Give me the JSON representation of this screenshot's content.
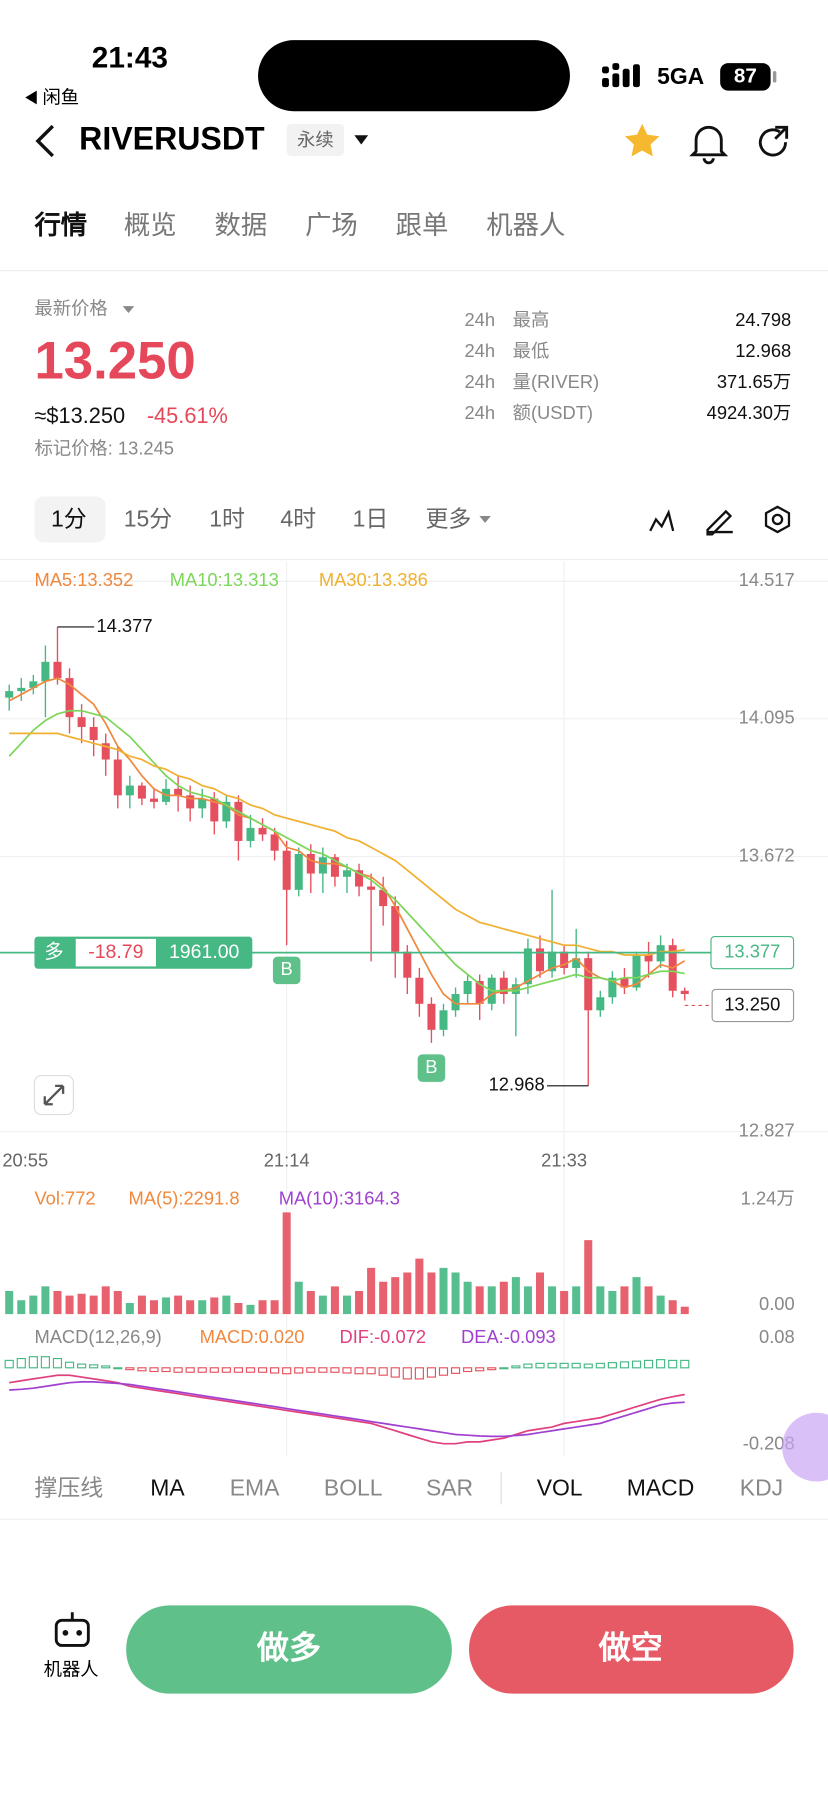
{
  "status_bar": {
    "time": "21:43",
    "back_app": "闲鱼",
    "network": "5GA",
    "battery": "87"
  },
  "header": {
    "symbol": "RIVERUSDT",
    "badge": "永续"
  },
  "tabs": [
    "行情",
    "概览",
    "数据",
    "广场",
    "跟单",
    "机器人"
  ],
  "price_panel": {
    "label": "最新价格",
    "price": "13.250",
    "usd": "≈$13.250",
    "change": "-45.61%",
    "mark_price": "标记价格: 13.245",
    "stats": [
      [
        "24h",
        "最高",
        "24.798"
      ],
      [
        "24h",
        "最低",
        "12.968"
      ],
      [
        "24h",
        "量(RIVER)",
        "371.65万"
      ],
      [
        "24h",
        "额(USDT)",
        "4924.30万"
      ]
    ]
  },
  "intervals": [
    "1分",
    "15分",
    "1时",
    "4时",
    "1日",
    "更多"
  ],
  "chart_data": {
    "type": "candlestick",
    "categories": [
      "20:55",
      null,
      null,
      null,
      null,
      null,
      null,
      null,
      null,
      null,
      null,
      null,
      null,
      null,
      null,
      null,
      null,
      null,
      null,
      null,
      null,
      null,
      null,
      "21:14",
      null,
      null,
      null,
      null,
      null,
      null,
      null,
      null,
      null,
      null,
      null,
      null,
      null,
      null,
      null,
      null,
      null,
      null,
      null,
      null,
      null,
      null,
      "21:33",
      null,
      null,
      null,
      null,
      null,
      null,
      null,
      null,
      null,
      null
    ],
    "ohlc": [
      [
        14.16,
        14.2,
        14.12,
        14.18
      ],
      [
        14.18,
        14.22,
        14.15,
        14.19
      ],
      [
        14.19,
        14.23,
        14.17,
        14.21
      ],
      [
        14.21,
        14.32,
        14.1,
        14.27
      ],
      [
        14.27,
        14.377,
        14.2,
        14.22
      ],
      [
        14.22,
        14.25,
        14.05,
        14.1
      ],
      [
        14.1,
        14.14,
        14.02,
        14.07
      ],
      [
        14.07,
        14.1,
        13.98,
        14.03
      ],
      [
        14.02,
        14.05,
        13.92,
        13.97
      ],
      [
        13.97,
        14.01,
        13.82,
        13.86
      ],
      [
        13.86,
        13.92,
        13.82,
        13.89
      ],
      [
        13.89,
        13.9,
        13.83,
        13.85
      ],
      [
        13.85,
        13.88,
        13.82,
        13.84
      ],
      [
        13.84,
        13.91,
        13.83,
        13.88
      ],
      [
        13.88,
        13.92,
        13.81,
        13.86
      ],
      [
        13.86,
        13.89,
        13.78,
        13.82
      ],
      [
        13.82,
        13.88,
        13.79,
        13.85
      ],
      [
        13.85,
        13.87,
        13.74,
        13.78
      ],
      [
        13.78,
        13.86,
        13.76,
        13.84
      ],
      [
        13.84,
        13.86,
        13.66,
        13.72
      ],
      [
        13.72,
        13.8,
        13.7,
        13.76
      ],
      [
        13.76,
        13.79,
        13.72,
        13.74
      ],
      [
        13.74,
        13.76,
        13.66,
        13.69
      ],
      [
        13.69,
        13.72,
        13.4,
        13.57
      ],
      [
        13.57,
        13.7,
        13.55,
        13.68
      ],
      [
        13.68,
        13.71,
        13.56,
        13.62
      ],
      [
        13.62,
        13.7,
        13.56,
        13.67
      ],
      [
        13.67,
        13.68,
        13.58,
        13.61
      ],
      [
        13.61,
        13.65,
        13.56,
        13.63
      ],
      [
        13.63,
        13.65,
        13.55,
        13.58
      ],
      [
        13.58,
        13.62,
        13.35,
        13.57
      ],
      [
        13.57,
        13.61,
        13.46,
        13.52
      ],
      [
        13.52,
        13.55,
        13.3,
        13.38
      ],
      [
        13.38,
        13.4,
        13.25,
        13.3
      ],
      [
        13.3,
        13.33,
        13.18,
        13.22
      ],
      [
        13.22,
        13.24,
        13.1,
        13.14
      ],
      [
        13.14,
        13.22,
        13.12,
        13.2
      ],
      [
        13.2,
        13.27,
        13.18,
        13.25
      ],
      [
        13.25,
        13.31,
        13.22,
        13.29
      ],
      [
        13.29,
        13.31,
        13.17,
        13.22
      ],
      [
        13.22,
        13.31,
        13.2,
        13.3
      ],
      [
        13.3,
        13.32,
        13.22,
        13.25
      ],
      [
        13.25,
        13.3,
        13.12,
        13.28
      ],
      [
        13.28,
        13.42,
        13.25,
        13.39
      ],
      [
        13.39,
        13.43,
        13.3,
        13.32
      ],
      [
        13.32,
        13.57,
        13.3,
        13.38
      ],
      [
        13.38,
        13.4,
        13.31,
        13.33
      ],
      [
        13.33,
        13.45,
        13.3,
        13.36
      ],
      [
        13.36,
        13.38,
        12.968,
        13.2
      ],
      [
        13.2,
        13.26,
        13.18,
        13.24
      ],
      [
        13.24,
        13.32,
        13.22,
        13.3
      ],
      [
        13.3,
        13.33,
        13.25,
        13.27
      ],
      [
        13.27,
        13.38,
        13.26,
        13.37
      ],
      [
        13.37,
        13.41,
        13.3,
        13.35
      ],
      [
        13.35,
        13.43,
        13.33,
        13.4
      ],
      [
        13.4,
        13.42,
        13.24,
        13.26
      ],
      [
        13.26,
        13.27,
        13.23,
        13.25
      ]
    ],
    "up_color": "#45b883",
    "down_color": "#e6505e",
    "series": [
      {
        "name": "MA5:13.352",
        "color": "#f0883e",
        "values": [
          14.15,
          14.17,
          14.19,
          14.21,
          14.22,
          14.2,
          14.17,
          14.14,
          14.08,
          14.01,
          13.97,
          13.92,
          13.88,
          13.86,
          13.86,
          13.85,
          13.85,
          13.84,
          13.83,
          13.8,
          13.79,
          13.77,
          13.75,
          13.7,
          13.69,
          13.66,
          13.65,
          13.65,
          13.64,
          13.62,
          13.61,
          13.58,
          13.52,
          13.45,
          13.38,
          13.31,
          13.25,
          13.22,
          13.22,
          13.22,
          13.25,
          13.26,
          13.27,
          13.29,
          13.31,
          13.33,
          13.34,
          13.36,
          13.32,
          13.3,
          13.29,
          13.27,
          13.28,
          13.31,
          13.34,
          13.33,
          13.352
        ]
      },
      {
        "name": "MA10:13.313",
        "color": "#7bd65a",
        "values": [
          13.98,
          14.02,
          14.06,
          14.09,
          14.11,
          14.12,
          14.12,
          14.11,
          14.1,
          14.07,
          14.04,
          14.0,
          13.96,
          13.92,
          13.89,
          13.87,
          13.86,
          13.85,
          13.83,
          13.81,
          13.79,
          13.77,
          13.75,
          13.73,
          13.71,
          13.69,
          13.68,
          13.66,
          13.64,
          13.62,
          13.6,
          13.57,
          13.54,
          13.5,
          13.46,
          13.42,
          13.38,
          13.34,
          13.31,
          13.28,
          13.26,
          13.26,
          13.26,
          13.27,
          13.28,
          13.29,
          13.3,
          13.31,
          13.3,
          13.3,
          13.29,
          13.3,
          13.3,
          13.31,
          13.32,
          13.32,
          13.313
        ]
      },
      {
        "name": "MA30:13.386",
        "color": "#f0b030",
        "values": [
          14.05,
          14.05,
          14.05,
          14.05,
          14.05,
          14.04,
          14.03,
          14.02,
          14.01,
          14.0,
          13.98,
          13.97,
          13.95,
          13.94,
          13.92,
          13.91,
          13.89,
          13.88,
          13.86,
          13.85,
          13.83,
          13.82,
          13.8,
          13.79,
          13.78,
          13.77,
          13.76,
          13.75,
          13.73,
          13.72,
          13.7,
          13.68,
          13.66,
          13.63,
          13.6,
          13.57,
          13.54,
          13.51,
          13.49,
          13.47,
          13.46,
          13.45,
          13.44,
          13.43,
          13.42,
          13.41,
          13.4,
          13.4,
          13.39,
          13.38,
          13.38,
          13.37,
          13.37,
          13.37,
          13.38,
          13.38,
          13.386
        ]
      }
    ],
    "ylim": [
      12.827,
      14.517
    ],
    "yticks": [
      12.827,
      13.672,
      14.095,
      14.517
    ],
    "grid": true,
    "high": 14.377,
    "low": 12.968,
    "last_price": {
      "value": 13.25,
      "label": "13.250"
    },
    "position": {
      "side": "多",
      "pnl": -18.79,
      "size": "1961.00",
      "price": {
        "value": 13.377,
        "label": "13.377"
      }
    },
    "trade_marks": [
      "B",
      "B"
    ],
    "volume": {
      "legend": [
        "Vol:772",
        "MA(5):2291.8",
        "MA(10):3164.3"
      ],
      "ylim": [
        0,
        1.24
      ],
      "yticks": [
        {
          "value": 0,
          "label": "0.00"
        },
        {
          "value": 1.24,
          "label": "1.24万"
        }
      ],
      "values": [
        0.25,
        0.15,
        0.2,
        0.3,
        0.25,
        0.2,
        0.22,
        0.2,
        0.3,
        0.25,
        0.12,
        0.2,
        0.15,
        0.18,
        0.2,
        0.15,
        0.15,
        0.18,
        0.2,
        0.12,
        0.1,
        0.15,
        0.15,
        1.1,
        0.35,
        0.25,
        0.2,
        0.3,
        0.2,
        0.25,
        0.5,
        0.35,
        0.4,
        0.45,
        0.6,
        0.45,
        0.5,
        0.45,
        0.35,
        0.3,
        0.3,
        0.35,
        0.4,
        0.3,
        0.45,
        0.3,
        0.25,
        0.3,
        0.8,
        0.3,
        0.25,
        0.3,
        0.4,
        0.3,
        0.2,
        0.15,
        0.08
      ]
    },
    "macd": {
      "legend": [
        "MACD(12,26,9)",
        "MACD:0.020",
        "DIF:-0.072",
        "DEA:-0.093"
      ],
      "ylim": [
        -0.208,
        0.08
      ],
      "yticks": [
        -0.208,
        0.08
      ],
      "hist": [
        0.02,
        0.025,
        0.03,
        0.03,
        0.025,
        0.015,
        0.01,
        0.008,
        0.005,
        0,
        -0.005,
        -0.008,
        -0.01,
        -0.01,
        -0.012,
        -0.012,
        -0.012,
        -0.012,
        -0.012,
        -0.012,
        -0.012,
        -0.012,
        -0.014,
        -0.016,
        -0.014,
        -0.012,
        -0.012,
        -0.012,
        -0.014,
        -0.016,
        -0.016,
        -0.02,
        -0.025,
        -0.03,
        -0.03,
        -0.025,
        -0.02,
        -0.015,
        -0.01,
        -0.008,
        -0.005,
        0,
        0.005,
        0.01,
        0.012,
        0.012,
        0.012,
        0.012,
        0.01,
        0.012,
        0.014,
        0.016,
        0.018,
        0.02,
        0.022,
        0.02,
        0.02
      ],
      "dif": [
        -0.04,
        -0.035,
        -0.03,
        -0.025,
        -0.02,
        -0.02,
        -0.025,
        -0.03,
        -0.035,
        -0.04,
        -0.05,
        -0.055,
        -0.06,
        -0.065,
        -0.07,
        -0.075,
        -0.08,
        -0.085,
        -0.09,
        -0.095,
        -0.1,
        -0.105,
        -0.11,
        -0.115,
        -0.12,
        -0.125,
        -0.13,
        -0.135,
        -0.14,
        -0.145,
        -0.15,
        -0.16,
        -0.17,
        -0.18,
        -0.19,
        -0.2,
        -0.205,
        -0.205,
        -0.2,
        -0.2,
        -0.195,
        -0.19,
        -0.18,
        -0.17,
        -0.165,
        -0.16,
        -0.15,
        -0.145,
        -0.14,
        -0.135,
        -0.125,
        -0.115,
        -0.105,
        -0.095,
        -0.085,
        -0.078,
        -0.072
      ],
      "dea": [
        -0.06,
        -0.058,
        -0.055,
        -0.05,
        -0.045,
        -0.04,
        -0.038,
        -0.038,
        -0.04,
        -0.042,
        -0.045,
        -0.05,
        -0.055,
        -0.06,
        -0.065,
        -0.07,
        -0.075,
        -0.08,
        -0.085,
        -0.09,
        -0.095,
        -0.1,
        -0.105,
        -0.11,
        -0.115,
        -0.12,
        -0.125,
        -0.13,
        -0.135,
        -0.14,
        -0.145,
        -0.15,
        -0.155,
        -0.16,
        -0.165,
        -0.17,
        -0.175,
        -0.18,
        -0.182,
        -0.184,
        -0.185,
        -0.185,
        -0.183,
        -0.18,
        -0.175,
        -0.17,
        -0.165,
        -0.16,
        -0.155,
        -0.15,
        -0.14,
        -0.13,
        -0.12,
        -0.11,
        -0.1,
        -0.095,
        -0.093
      ]
    }
  },
  "indicators": [
    "撑压线",
    "MA",
    "EMA",
    "BOLL",
    "SAR",
    "VOL",
    "MACD",
    "KDJ"
  ],
  "bottom_bar": {
    "robot": "机器人",
    "long": "做多",
    "short": "做空"
  }
}
